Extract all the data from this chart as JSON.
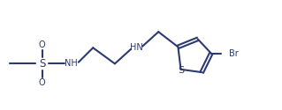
{
  "line_color": "#2d3a6e",
  "background_color": "#ffffff",
  "line_width": 1.5,
  "font_size": 7.0,
  "font_color": "#2d3a6e",
  "figsize": [
    3.19,
    1.25
  ],
  "dpi": 100,
  "xlim": [
    0,
    9.5
  ],
  "ylim": [
    0,
    3.8
  ]
}
